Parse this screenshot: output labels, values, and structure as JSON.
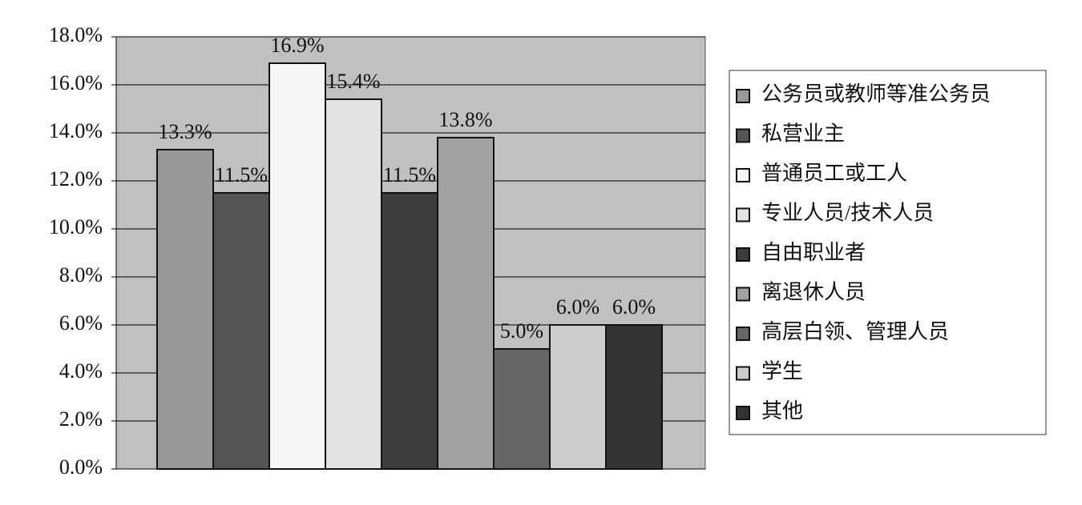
{
  "chart_data": {
    "type": "bar",
    "categories": [
      null
    ],
    "series": [
      {
        "name": "公务员或教师等准公务员",
        "color": "#999999",
        "values": [
          13.3
        ],
        "value_labels": [
          "13.3%"
        ]
      },
      {
        "name": "私营业主",
        "color": "#555555",
        "values": [
          11.5
        ],
        "value_labels": [
          "11.5%"
        ]
      },
      {
        "name": "普通员工或工人",
        "color": "#f7f7f7",
        "values": [
          16.9
        ],
        "value_labels": [
          "16.9%"
        ]
      },
      {
        "name": "专业人员/技术人员",
        "color": "#e2e2e2",
        "values": [
          15.4
        ],
        "value_labels": [
          "15.4%"
        ]
      },
      {
        "name": "自由职业者",
        "color": "#3c3c3c",
        "values": [
          11.5
        ],
        "value_labels": [
          "11.5%"
        ]
      },
      {
        "name": "离退休人员",
        "color": "#a2a2a2",
        "values": [
          13.8
        ],
        "value_labels": [
          "13.8%"
        ]
      },
      {
        "name": "高层白领、管理人员",
        "color": "#666666",
        "values": [
          5.0
        ],
        "value_labels": [
          "5.0%"
        ]
      },
      {
        "name": "学生",
        "color": "#cccccc",
        "values": [
          6.0
        ],
        "value_labels": [
          "6.0%"
        ]
      },
      {
        "name": "其他",
        "color": "#333333",
        "values": [
          6.0
        ],
        "value_labels": [
          "6.0%"
        ]
      }
    ],
    "ylim": [
      0,
      18
    ],
    "yticks": [
      {
        "value": 0,
        "label": "0.0%"
      },
      {
        "value": 2,
        "label": "2.0%"
      },
      {
        "value": 4,
        "label": "4.0%"
      },
      {
        "value": 6,
        "label": "6.0%"
      },
      {
        "value": 8,
        "label": "8.0%"
      },
      {
        "value": 10,
        "label": "10.0%"
      },
      {
        "value": 12,
        "label": "12.0%"
      },
      {
        "value": 14,
        "label": "14.0%"
      },
      {
        "value": 16,
        "label": "16.0%"
      },
      {
        "value": 18,
        "label": "18.0%"
      }
    ],
    "grid": true,
    "legend": "right"
  }
}
